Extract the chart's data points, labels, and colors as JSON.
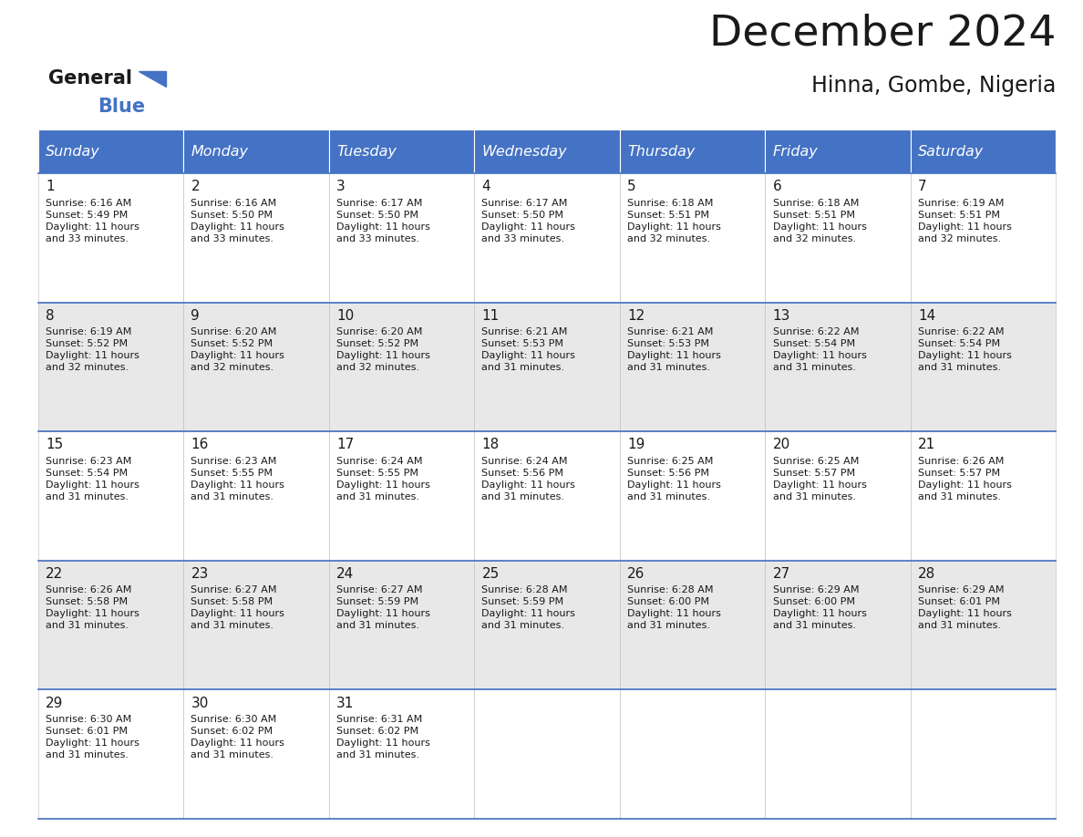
{
  "title": "December 2024",
  "subtitle": "Hinna, Gombe, Nigeria",
  "header_color": "#4472C4",
  "header_text_color": "#FFFFFF",
  "cell_bg_even": "#FFFFFF",
  "cell_bg_odd": "#E8E8E8",
  "border_color": "#4472C4",
  "text_color": "#1a1a1a",
  "days_of_week": [
    "Sunday",
    "Monday",
    "Tuesday",
    "Wednesday",
    "Thursday",
    "Friday",
    "Saturday"
  ],
  "weeks": [
    [
      {
        "day": 1,
        "sunrise": "6:16 AM",
        "sunset": "5:49 PM",
        "daylight": "11 hours and 33 minutes"
      },
      {
        "day": 2,
        "sunrise": "6:16 AM",
        "sunset": "5:50 PM",
        "daylight": "11 hours and 33 minutes"
      },
      {
        "day": 3,
        "sunrise": "6:17 AM",
        "sunset": "5:50 PM",
        "daylight": "11 hours and 33 minutes"
      },
      {
        "day": 4,
        "sunrise": "6:17 AM",
        "sunset": "5:50 PM",
        "daylight": "11 hours and 33 minutes"
      },
      {
        "day": 5,
        "sunrise": "6:18 AM",
        "sunset": "5:51 PM",
        "daylight": "11 hours and 32 minutes"
      },
      {
        "day": 6,
        "sunrise": "6:18 AM",
        "sunset": "5:51 PM",
        "daylight": "11 hours and 32 minutes"
      },
      {
        "day": 7,
        "sunrise": "6:19 AM",
        "sunset": "5:51 PM",
        "daylight": "11 hours and 32 minutes"
      }
    ],
    [
      {
        "day": 8,
        "sunrise": "6:19 AM",
        "sunset": "5:52 PM",
        "daylight": "11 hours and 32 minutes"
      },
      {
        "day": 9,
        "sunrise": "6:20 AM",
        "sunset": "5:52 PM",
        "daylight": "11 hours and 32 minutes"
      },
      {
        "day": 10,
        "sunrise": "6:20 AM",
        "sunset": "5:52 PM",
        "daylight": "11 hours and 32 minutes"
      },
      {
        "day": 11,
        "sunrise": "6:21 AM",
        "sunset": "5:53 PM",
        "daylight": "11 hours and 31 minutes"
      },
      {
        "day": 12,
        "sunrise": "6:21 AM",
        "sunset": "5:53 PM",
        "daylight": "11 hours and 31 minutes"
      },
      {
        "day": 13,
        "sunrise": "6:22 AM",
        "sunset": "5:54 PM",
        "daylight": "11 hours and 31 minutes"
      },
      {
        "day": 14,
        "sunrise": "6:22 AM",
        "sunset": "5:54 PM",
        "daylight": "11 hours and 31 minutes"
      }
    ],
    [
      {
        "day": 15,
        "sunrise": "6:23 AM",
        "sunset": "5:54 PM",
        "daylight": "11 hours and 31 minutes"
      },
      {
        "day": 16,
        "sunrise": "6:23 AM",
        "sunset": "5:55 PM",
        "daylight": "11 hours and 31 minutes"
      },
      {
        "day": 17,
        "sunrise": "6:24 AM",
        "sunset": "5:55 PM",
        "daylight": "11 hours and 31 minutes"
      },
      {
        "day": 18,
        "sunrise": "6:24 AM",
        "sunset": "5:56 PM",
        "daylight": "11 hours and 31 minutes"
      },
      {
        "day": 19,
        "sunrise": "6:25 AM",
        "sunset": "5:56 PM",
        "daylight": "11 hours and 31 minutes"
      },
      {
        "day": 20,
        "sunrise": "6:25 AM",
        "sunset": "5:57 PM",
        "daylight": "11 hours and 31 minutes"
      },
      {
        "day": 21,
        "sunrise": "6:26 AM",
        "sunset": "5:57 PM",
        "daylight": "11 hours and 31 minutes"
      }
    ],
    [
      {
        "day": 22,
        "sunrise": "6:26 AM",
        "sunset": "5:58 PM",
        "daylight": "11 hours and 31 minutes"
      },
      {
        "day": 23,
        "sunrise": "6:27 AM",
        "sunset": "5:58 PM",
        "daylight": "11 hours and 31 minutes"
      },
      {
        "day": 24,
        "sunrise": "6:27 AM",
        "sunset": "5:59 PM",
        "daylight": "11 hours and 31 minutes"
      },
      {
        "day": 25,
        "sunrise": "6:28 AM",
        "sunset": "5:59 PM",
        "daylight": "11 hours and 31 minutes"
      },
      {
        "day": 26,
        "sunrise": "6:28 AM",
        "sunset": "6:00 PM",
        "daylight": "11 hours and 31 minutes"
      },
      {
        "day": 27,
        "sunrise": "6:29 AM",
        "sunset": "6:00 PM",
        "daylight": "11 hours and 31 minutes"
      },
      {
        "day": 28,
        "sunrise": "6:29 AM",
        "sunset": "6:01 PM",
        "daylight": "11 hours and 31 minutes"
      }
    ],
    [
      {
        "day": 29,
        "sunrise": "6:30 AM",
        "sunset": "6:01 PM",
        "daylight": "11 hours and 31 minutes"
      },
      {
        "day": 30,
        "sunrise": "6:30 AM",
        "sunset": "6:02 PM",
        "daylight": "11 hours and 31 minutes"
      },
      {
        "day": 31,
        "sunrise": "6:31 AM",
        "sunset": "6:02 PM",
        "daylight": "11 hours and 31 minutes"
      },
      null,
      null,
      null,
      null
    ]
  ]
}
